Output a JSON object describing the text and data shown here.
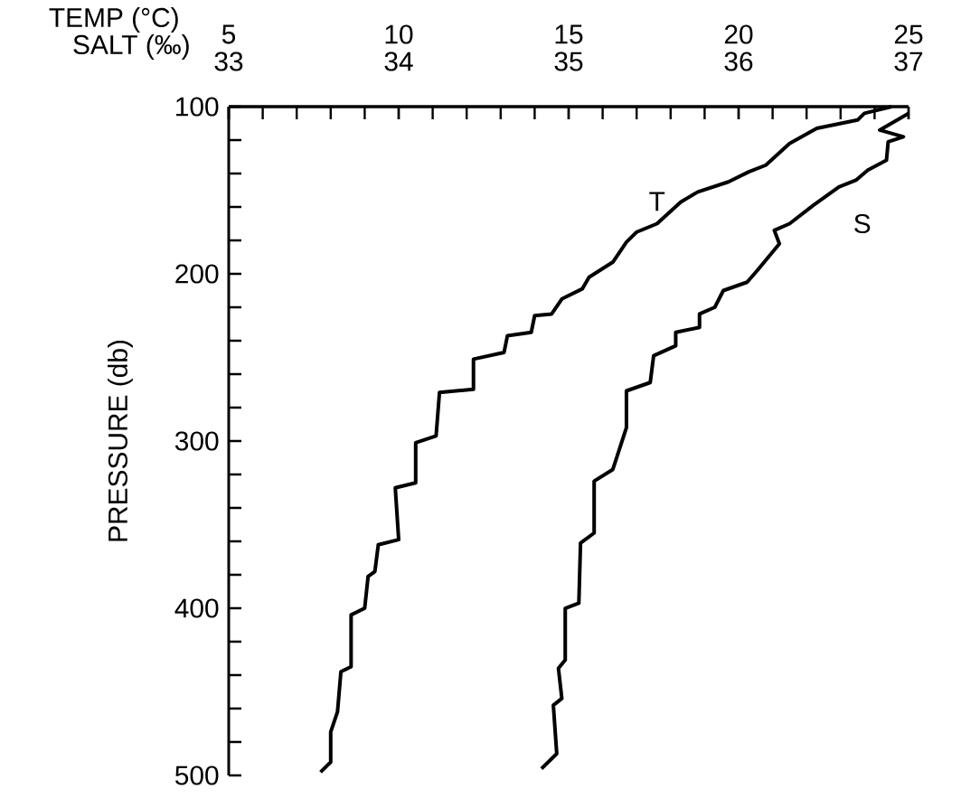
{
  "chart_data": {
    "type": "line",
    "xlabel": "TEMP (°C)",
    "x2label": "SALT (‰)",
    "ylabel": "PRESSURE (db)",
    "xlim": [
      5,
      25
    ],
    "xticks": [
      5,
      10,
      15,
      20,
      25
    ],
    "x2lim": [
      33,
      37
    ],
    "x2ticks": [
      33,
      34,
      35,
      36,
      37
    ],
    "ylim": [
      500,
      100
    ],
    "yticks": [
      100,
      200,
      300,
      400,
      500
    ],
    "marker": "none",
    "line_style": "solid",
    "series": [
      {
        "name": "T",
        "color": "#000000",
        "x": [
          24.5,
          23.7,
          23.5,
          22.3,
          21.5,
          20.8,
          20.3,
          19.7,
          18.8,
          18.3,
          17.6,
          17.0,
          16.7,
          16.3,
          15.6,
          15.4,
          14.8,
          14.5,
          14.0,
          13.9,
          13.2,
          13.1,
          12.2,
          12.2,
          11.2,
          11.1,
          10.5,
          10.5,
          9.9,
          10.0,
          9.4,
          9.3,
          9.1,
          9.0,
          8.6,
          8.6,
          8.3,
          8.2,
          8.0,
          8.0,
          7.7
        ],
        "values": [
          100,
          104,
          108,
          113,
          122,
          135,
          139,
          145,
          151,
          157,
          170,
          175,
          181,
          193,
          202,
          209,
          215,
          224,
          225,
          235,
          237,
          247,
          251,
          269,
          271,
          297,
          301,
          325,
          328,
          359,
          362,
          378,
          381,
          400,
          404,
          435,
          438,
          462,
          474,
          492,
          498
        ]
      },
      {
        "name": "S",
        "color": "#000000",
        "axis": "x2",
        "x": [
          37.0,
          36.83,
          36.97,
          36.88,
          36.87,
          36.76,
          36.69,
          36.59,
          36.44,
          36.3,
          36.21,
          36.24,
          36.11,
          36.05,
          35.91,
          35.86,
          35.77,
          35.77,
          35.63,
          35.63,
          35.5,
          35.48,
          35.34,
          35.34,
          35.26,
          35.15,
          35.15,
          35.07,
          35.06,
          34.98,
          34.98,
          34.94,
          34.96,
          34.91,
          34.93,
          34.84
        ],
        "values": [
          104,
          114,
          118,
          121,
          132,
          138,
          144,
          148,
          159,
          170,
          174,
          182,
          198,
          205,
          210,
          220,
          224,
          232,
          235,
          243,
          249,
          265,
          270,
          292,
          317,
          324,
          355,
          361,
          397,
          400,
          431,
          436,
          454,
          458,
          487,
          496
        ]
      }
    ]
  }
}
